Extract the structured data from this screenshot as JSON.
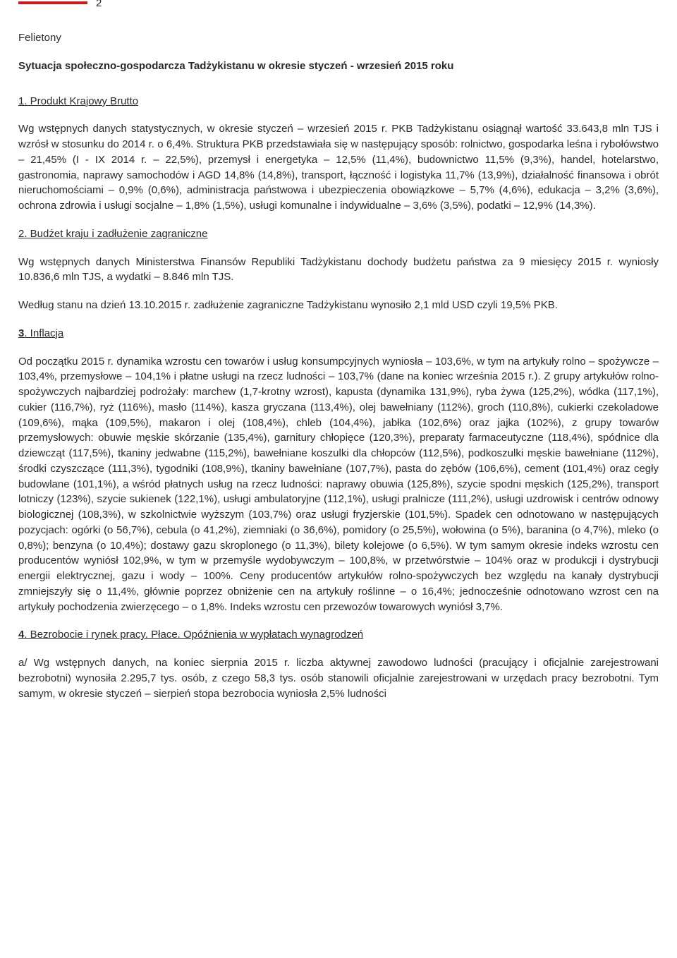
{
  "page_number": "2",
  "section_label": "Felietony",
  "title": "Sytuacja społeczno-gospodarcza Tadżykistanu w okresie styczeń - wrzesień 2015 roku",
  "sections": [
    {
      "num": "1",
      "heading": ". Produkt Krajowy Brutto",
      "paragraphs": [
        "Wg wstępnych danych statystycznych, w okresie styczeń – wrzesień 2015 r. PKB Tadżykistanu osiągnął wartość 33.643,8 mln TJS i wzrósł w stosunku do 2014 r. o 6,4%. Struktura PKB przedstawiała się w następujący sposób: rolnictwo, gospodarka leśna i rybołówstwo – 21,45% (I - IX 2014 r. – 22,5%), przemysł i energetyka – 12,5% (11,4%), budownictwo 11,5% (9,3%), handel, hotelarstwo, gastronomia, naprawy samochodów i AGD 14,8% (14,8%), transport, łączność i logistyka 11,7% (13,9%), działalność finansowa i obrót nieruchomościami – 0,9% (0,6%), administracja państwowa i ubezpieczenia obowiązkowe – 5,7% (4,6%), edukacja – 3,2% (3,6%), ochrona zdrowia i usługi socjalne – 1,8% (1,5%), usługi komunalne i indywidualne – 3,6% (3,5%), podatki – 12,9% (14,3%)."
      ]
    },
    {
      "num": "2",
      "heading": ". Budżet kraju i zadłużenie zagraniczne",
      "paragraphs": [
        "Wg wstępnych danych Ministerstwa Finansów Republiki Tadżykistanu dochody budżetu państwa za 9 miesięcy 2015 r. wyniosły 10.836,6 mln TJS, a wydatki – 8.846 mln TJS.",
        "Według stanu na dzień 13.10.2015 r. zadłużenie zagraniczne Tadżykistanu wynosiło 2,1 mld USD czyli 19,5% PKB."
      ]
    },
    {
      "num": "3",
      "heading": ". Inflacja",
      "paragraphs": [
        "Od początku 2015 r. dynamika wzrostu cen towarów i usług konsumpcyjnych wyniosła – 103,6%, w tym na artykuły rolno – spożywcze – 103,4%, przemysłowe – 104,1% i płatne usługi na rzecz ludności – 103,7% (dane na koniec września 2015 r.). Z grupy artykułów rolno-spożywczych najbardziej podrożały: marchew (1,7-krotny wzrost), kapusta (dynamika 131,9%), ryba żywa (125,2%), wódka (117,1%), cukier (116,7%), ryż (116%), masło (114%), kasza gryczana (113,4%), olej bawełniany (112%), groch (110,8%), cukierki czekoladowe (109,6%), mąka (109,5%), makaron i olej (108,4%), chleb (104,4%), jabłka (102,6%) oraz jajka (102%), z grupy towarów przemysłowych: obuwie męskie skórzanie (135,4%), garnitury chłopięce (120,3%), preparaty farmaceutyczne (118,4%), spódnice dla dziewcząt (117,5%), tkaniny jedwabne (115,2%), bawełniane koszulki dla chłopców (112,5%), podkoszulki męskie bawełniane (112%), środki czyszczące (111,3%), tygodniki (108,9%), tkaniny bawełniane (107,7%), pasta do zębów (106,6%), cement (101,4%) oraz cegły budowlane (101,1%), a wśród płatnych usług na rzecz ludności: naprawy obuwia (125,8%), szycie spodni męskich (125,2%), transport lotniczy (123%), szycie sukienek (122,1%), usługi ambulatoryjne (112,1%), usługi pralnicze (111,2%), usługi uzdrowisk i centrów odnowy biologicznej (108,3%), w szkolnictwie wyższym (103,7%) oraz usługi fryzjerskie (101,5%). Spadek cen odnotowano w następujących pozycjach: ogórki (o 56,7%), cebula (o 41,2%), ziemniaki (o 36,6%), pomidory (o 25,5%), wołowina (o 5%), baranina (o 4,7%), mleko (o 0,8%); benzyna (o 10,4%); dostawy gazu skroplonego (o 11,3%), bilety kolejowe (o 6,5%). W tym samym okresie indeks wzrostu cen producentów wyniósł 102,9%, w tym w przemyśle wydobywczym – 100,8%, w przetwórstwie – 104% oraz w produkcji i dystrybucji energii elektrycznej, gazu i wody – 100%. Ceny producentów artykułów rolno-spożywczych bez względu na kanały dystrybucji zmniejszyły się o 11,4%, głównie poprzez obniżenie cen na artykuły roślinne – o 16,4%; jednocześnie odnotowano wzrost cen na artykuły pochodzenia zwierzęcego – o 1,8%. Indeks wzrostu cen przewozów towarowych wyniósł 3,7%."
      ]
    },
    {
      "num": "4",
      "heading": ". Bezrobocie i rynek pracy. Płace. Opóźnienia w wypłatach wynagrodzeń",
      "paragraphs": [
        "a/ Wg wstępnych danych, na koniec sierpnia 2015 r. liczba aktywnej zawodowo ludności (pracujący i oficjalnie zarejestrowani bezrobotni) wynosiła 2.295,7 tys. osób, z czego 58,3 tys. osób stanowili oficjalnie zarejestrowani w urzędach pracy bezrobotni. Tym samym, w okresie styczeń – sierpień stopa bezrobocia wyniosła 2,5% ludności"
      ]
    }
  ],
  "colors": {
    "underline": "#d41818",
    "text": "#2a2a2a",
    "background": "#ffffff"
  },
  "typography": {
    "body_fontsize": 15,
    "line_height": 1.45,
    "font_family": "Verdana"
  }
}
